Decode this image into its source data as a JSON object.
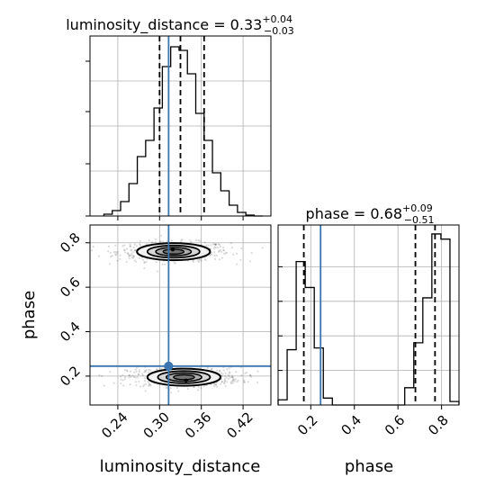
{
  "chart_data": {
    "type": "corner",
    "parameters": [
      "luminosity_distance",
      "phase"
    ],
    "truths": {
      "luminosity_distance": 0.313,
      "phase": 0.245
    },
    "truth_color": "#3a75b0",
    "panels": [
      {
        "id": "hist-luminosity-distance",
        "type": "step-histogram",
        "parameter": "luminosity_distance",
        "title": {
          "prefix": "luminosity_distance = 0.33",
          "plus": "+0.04",
          "minus": "−0.03"
        },
        "xlim": [
          0.2,
          0.46
        ],
        "ylim": [
          0,
          1
        ],
        "bin_edges": [
          0.22,
          0.232,
          0.244,
          0.256,
          0.268,
          0.28,
          0.292,
          0.304,
          0.316,
          0.328,
          0.34,
          0.352,
          0.364,
          0.376,
          0.388,
          0.4,
          0.412,
          0.424,
          0.436,
          0.448
        ],
        "counts": [
          0.01,
          0.03,
          0.08,
          0.18,
          0.33,
          0.42,
          0.6,
          0.83,
          0.94,
          0.92,
          0.79,
          0.57,
          0.42,
          0.24,
          0.14,
          0.06,
          0.02,
          0.005,
          0.0
        ],
        "quantiles": [
          0.3,
          0.33,
          0.364
        ]
      },
      {
        "id": "hist-phase",
        "type": "step-histogram",
        "parameter": "phase",
        "title": {
          "prefix": "phase = 0.68",
          "plus": "+0.09",
          "minus": "−0.51"
        },
        "xlim": [
          0.05,
          0.88
        ],
        "ylim": [
          0,
          1
        ],
        "xticks": [
          0.2,
          0.4,
          0.6,
          0.8
        ],
        "xtick_labels": [
          "0.2",
          "0.4",
          "0.6",
          "0.8"
        ],
        "xlabel": "phase",
        "bin_edges": [
          0.05,
          0.0915,
          0.133,
          0.1745,
          0.216,
          0.2575,
          0.299,
          0.3405,
          0.382,
          0.4235,
          0.465,
          0.5065,
          0.548,
          0.5895,
          0.631,
          0.6725,
          0.714,
          0.7555,
          0.797,
          0.8385,
          0.88
        ],
        "counts": [
          0.03,
          0.32,
          0.83,
          0.68,
          0.33,
          0.04,
          0.0,
          0.0,
          0.0,
          0.0,
          0.0,
          0.0,
          0.0,
          0.0,
          0.1,
          0.36,
          0.62,
          0.99,
          0.96,
          0.02
        ],
        "quantiles": [
          0.168,
          0.68,
          0.77
        ]
      },
      {
        "id": "scatter-2d",
        "type": "2d-density",
        "xparameter": "luminosity_distance",
        "yparameter": "phase",
        "xlim": [
          0.2,
          0.46
        ],
        "ylim": [
          0.07,
          0.88
        ],
        "xticks": [
          0.24,
          0.3,
          0.36,
          0.42
        ],
        "xtick_labels": [
          "0.24",
          "0.30",
          "0.36",
          "0.42"
        ],
        "yticks": [
          0.2,
          0.4,
          0.6,
          0.8
        ],
        "ytick_labels": [
          "0.2",
          "0.4",
          "0.6",
          "0.8"
        ],
        "xlabel": "luminosity_distance",
        "ylabel": "phase",
        "clusters": [
          {
            "center": [
              0.32,
              0.76
            ],
            "spread": [
              0.03,
              0.04
            ],
            "peak": [
              0.319,
              0.77
            ]
          },
          {
            "center": [
              0.335,
              0.195
            ],
            "spread": [
              0.03,
              0.04
            ],
            "peak": [
              0.338,
              0.18
            ]
          }
        ]
      }
    ],
    "grid": true
  }
}
